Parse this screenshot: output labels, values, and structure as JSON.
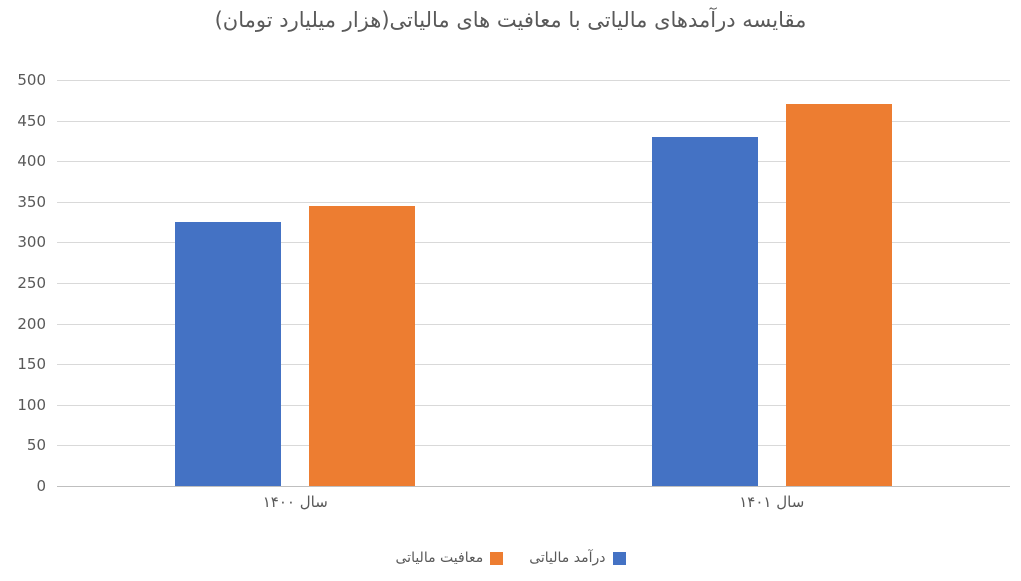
{
  "title": "مقایسه درآمدهای مالیاتی با معافیت های مالیاتی(هزار میلیارد تومان)",
  "chart_data": {
    "type": "bar",
    "title": "مقایسه درآمدهای مالیاتی با معافیت های مالیاتی(هزار میلیارد تومان)",
    "categories": [
      "سال ۱۴۰۰",
      "سال ۱۴۰۱"
    ],
    "series": [
      {
        "name": "درآمد مالیاتی",
        "color": "#4472c4",
        "values": [
          325,
          430
        ]
      },
      {
        "name": "معافیت مالیاتی",
        "color": "#ed7d31",
        "values": [
          345,
          470
        ]
      }
    ],
    "xlabel": "",
    "ylabel": "",
    "ylim": [
      0,
      500
    ],
    "ytick_step": 50,
    "ytick_labels": [
      "0",
      "50",
      "100",
      "150",
      "200",
      "250",
      "300",
      "350",
      "400",
      "450",
      "500"
    ],
    "grid": true,
    "legend_position": "bottom",
    "direction": "rtl"
  },
  "colors": {
    "series_revenue": "#4472c4",
    "series_exemption": "#ed7d31",
    "gridline": "#d9d9d9",
    "axis_line": "#bfbfbf",
    "text": "#595959",
    "background": "#ffffff"
  }
}
